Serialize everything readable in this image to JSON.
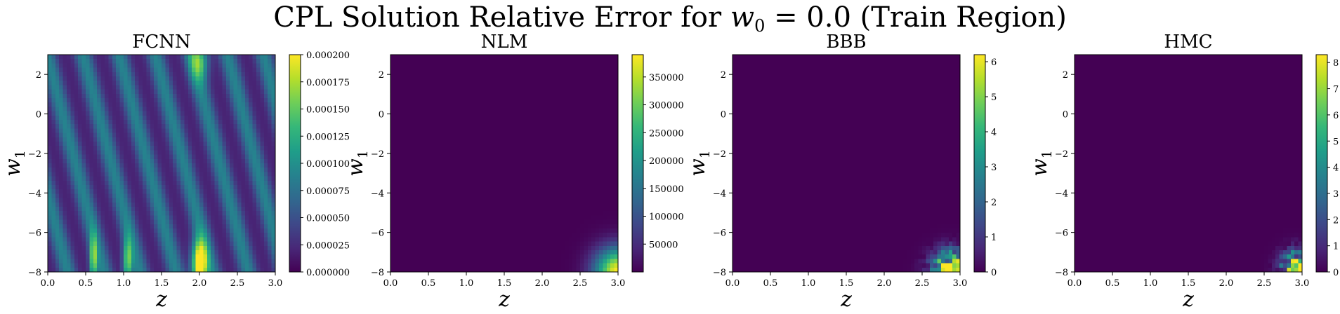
{
  "figure": {
    "title_main": "CPL Solution Relative Error for ",
    "title_var": "w",
    "title_var_sub": "0",
    "title_rest": " = 0.0 (Train Region)"
  },
  "colors": {
    "viridis": [
      "#440154",
      "#482878",
      "#3e4989",
      "#31688e",
      "#26828e",
      "#1f9e89",
      "#35b779",
      "#6ece58",
      "#b5de2b",
      "#fde725"
    ]
  },
  "chart_data": [
    {
      "type": "heatmap",
      "title": "FCNN",
      "xlabel": "z",
      "ylabel": "w",
      "ylabel_sub": "1",
      "xlim": [
        0.0,
        3.0
      ],
      "ylim": [
        -8,
        3
      ],
      "xticks": [
        "0.0",
        "0.5",
        "1.0",
        "1.5",
        "2.0",
        "2.5",
        "3.0"
      ],
      "yticks": [
        "2",
        "0",
        "−2",
        "−4",
        "−6",
        "−8"
      ],
      "colorbar": {
        "range": [
          0.0,
          0.0002
        ],
        "ticks": [
          "0.000200",
          "0.000175",
          "0.000150",
          "0.000125",
          "0.000100",
          "0.000075",
          "0.000050",
          "0.000025",
          "0.000000"
        ]
      },
      "pattern": "oscillating",
      "hotspots": [
        {
          "z": 2.0,
          "w1": -7.6,
          "sigma_z": 0.1,
          "sigma_w1": 1.2,
          "value": 0.0002
        },
        {
          "z": 1.05,
          "w1": -7.5,
          "sigma_z": 0.06,
          "sigma_w1": 1.2,
          "value": 0.00012
        },
        {
          "z": 0.6,
          "w1": -7.4,
          "sigma_z": 0.05,
          "sigma_w1": 1.3,
          "value": 0.00012
        },
        {
          "z": 2.0,
          "w1": 2.7,
          "sigma_z": 0.12,
          "sigma_w1": 1.0,
          "value": 0.0001
        }
      ]
    },
    {
      "type": "heatmap",
      "title": "NLM",
      "xlabel": "z",
      "ylabel": "w",
      "ylabel_sub": "1",
      "xlim": [
        0.0,
        3.0
      ],
      "ylim": [
        -8,
        3
      ],
      "xticks": [
        "0.0",
        "0.5",
        "1.0",
        "1.5",
        "2.0",
        "2.5",
        "3.0"
      ],
      "yticks": [
        "2",
        "0",
        "−2",
        "−4",
        "−6",
        "−8"
      ],
      "colorbar": {
        "range": [
          0,
          390000
        ],
        "ticks": [
          "350000",
          "300000",
          "250000",
          "200000",
          "150000",
          "100000",
          "50000"
        ]
      },
      "pattern": "corner",
      "hotspots": [
        {
          "z": 3.0,
          "w1": -8.0,
          "sigma_z": 0.3,
          "sigma_w1": 1.2,
          "value": 390000
        }
      ]
    },
    {
      "type": "heatmap",
      "title": "BBB",
      "xlabel": "z",
      "ylabel": "w",
      "ylabel_sub": "1",
      "xlim": [
        0.0,
        3.0
      ],
      "ylim": [
        -8,
        3
      ],
      "xticks": [
        "0.0",
        "0.5",
        "1.0",
        "1.5",
        "2.0",
        "2.5",
        "3.0"
      ],
      "yticks": [
        "2",
        "0",
        "−2",
        "−4",
        "−6",
        "−8"
      ],
      "colorbar": {
        "range": [
          0,
          6.2
        ],
        "ticks": [
          "6",
          "5",
          "4",
          "3",
          "2",
          "1",
          "0"
        ]
      },
      "pattern": "noisy-corner",
      "hotspots": [
        {
          "z": 2.9,
          "w1": -7.9,
          "sigma_z": 0.25,
          "sigma_w1": 0.9,
          "value": 6.0
        }
      ]
    },
    {
      "type": "heatmap",
      "title": "HMC",
      "xlabel": "z",
      "ylabel": "w",
      "ylabel_sub": "1",
      "xlim": [
        0.0,
        3.0
      ],
      "ylim": [
        -8,
        3
      ],
      "xticks": [
        "0.0",
        "0.5",
        "1.0",
        "1.5",
        "2.0",
        "2.5",
        "3.0"
      ],
      "yticks": [
        "2",
        "0",
        "−2",
        "−4",
        "−6",
        "−8"
      ],
      "colorbar": {
        "range": [
          0,
          8.3
        ],
        "ticks": [
          "8",
          "7",
          "6",
          "5",
          "4",
          "3",
          "2",
          "1",
          "0"
        ]
      },
      "pattern": "noisy-corner",
      "hotspots": [
        {
          "z": 2.95,
          "w1": -7.8,
          "sigma_z": 0.2,
          "sigma_w1": 0.8,
          "value": 8.0
        }
      ]
    }
  ]
}
